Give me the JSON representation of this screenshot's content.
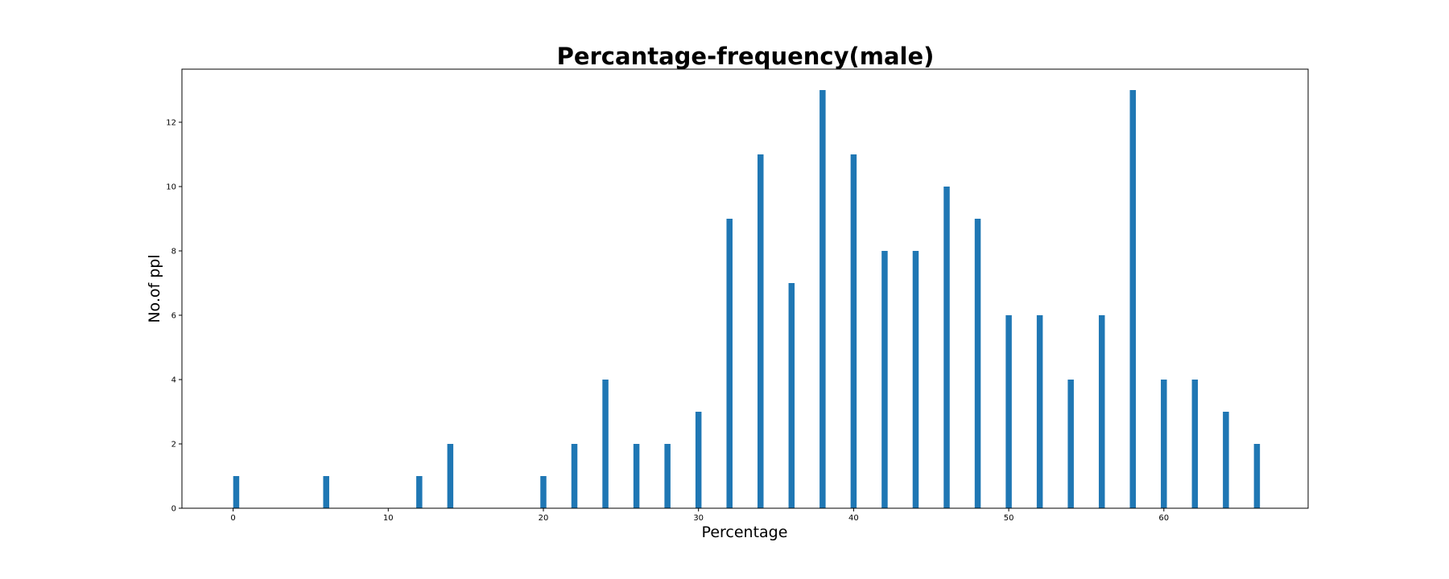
{
  "chart_data": {
    "type": "bar",
    "title": "Percantage-frequency(male)",
    "xlabel": "Percentage",
    "ylabel": "No.of ppl",
    "xlim": [
      -3.3,
      69.3
    ],
    "ylim": [
      0,
      13.65
    ],
    "x_ticks": [
      0,
      10,
      20,
      30,
      40,
      50,
      60
    ],
    "y_ticks": [
      0,
      2,
      4,
      6,
      8,
      10,
      12
    ],
    "grid": false,
    "legend": "none",
    "bar_color": "#1f77b4",
    "x": [
      0.2,
      6,
      12,
      14,
      20,
      22,
      24,
      26,
      28,
      30,
      32,
      34,
      36,
      38,
      40,
      42,
      44,
      46,
      48,
      50,
      52,
      54,
      56,
      58,
      60,
      62,
      64,
      66
    ],
    "values": [
      1,
      1,
      1,
      2,
      1,
      2,
      4,
      2,
      2,
      3,
      9,
      11,
      7,
      13,
      11,
      8,
      8,
      10,
      9,
      6,
      6,
      4,
      6,
      13,
      4,
      4,
      3,
      2
    ]
  }
}
